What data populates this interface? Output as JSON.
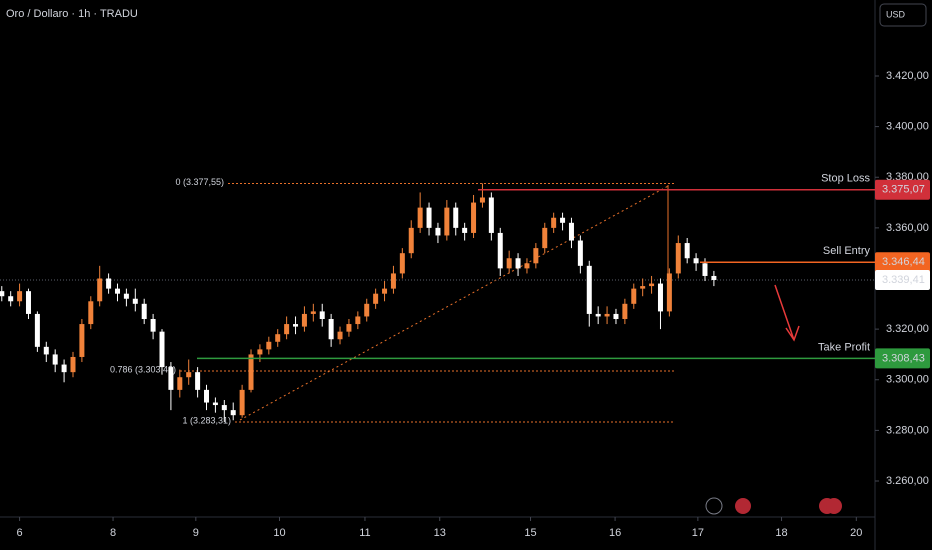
{
  "chart_data": {
    "type": "candlestick",
    "title": "Oro / Dollaro · 1h · TRADU",
    "currency": "USD",
    "x": [
      0,
      1,
      2,
      3,
      4,
      5,
      6,
      7,
      8,
      9,
      10,
      11,
      12,
      13,
      14,
      15,
      16,
      17,
      18,
      19,
      20,
      21,
      22,
      23,
      24,
      25,
      26,
      27,
      28,
      29,
      30,
      31,
      32,
      33,
      34,
      35,
      36,
      37,
      38,
      39,
      40,
      41,
      42,
      43,
      44,
      45,
      46,
      47,
      48,
      49,
      50,
      51,
      52,
      53,
      54,
      55,
      56,
      57,
      58,
      59,
      60,
      61,
      62,
      63,
      64,
      65,
      66,
      67,
      68,
      69,
      70,
      71,
      72,
      73,
      74,
      75,
      76,
      77,
      78,
      79,
      80
    ],
    "open": [
      3335,
      3333,
      3331,
      3335,
      3326,
      3313,
      3310,
      3306,
      3303,
      3309,
      3322,
      3331,
      3340,
      3336,
      3334,
      3332,
      3330,
      3324,
      3319,
      3305,
      3296,
      3301,
      3303,
      3296,
      3291,
      3290,
      3288,
      3286,
      3296,
      3310,
      3312,
      3315,
      3318,
      3322,
      3321,
      3326,
      3327,
      3324,
      3316,
      3319,
      3322,
      3325,
      3330,
      3334,
      3336,
      3342,
      3350,
      3360,
      3368,
      3360,
      3357,
      3368,
      3360,
      3358,
      3370,
      3372,
      3358,
      3344,
      3348,
      3344,
      3346,
      3352,
      3360,
      3364,
      3362,
      3355,
      3345,
      3326,
      3325,
      3326,
      3324,
      3330,
      3336,
      3337,
      3338,
      3327,
      3342,
      3354,
      3348,
      3346,
      3341
    ],
    "high": [
      3337,
      3335,
      3338,
      3336,
      3327,
      3315,
      3312,
      3308,
      3311,
      3324,
      3333,
      3345,
      3342,
      3338,
      3336,
      3336,
      3332,
      3326,
      3320,
      3307,
      3304,
      3308,
      3305,
      3298,
      3293,
      3292,
      3291,
      3298,
      3312,
      3314,
      3317,
      3320,
      3325,
      3325,
      3329,
      3330,
      3330,
      3326,
      3321,
      3324,
      3327,
      3332,
      3336,
      3339,
      3345,
      3352,
      3363,
      3374,
      3370,
      3362,
      3371,
      3370,
      3362,
      3373,
      3377.55,
      3374,
      3360,
      3351,
      3350,
      3348,
      3354,
      3362,
      3366,
      3366,
      3364,
      3357,
      3347,
      3329,
      3329,
      3328,
      3332,
      3338,
      3340,
      3341,
      3340,
      3344,
      3357,
      3356,
      3350,
      3348,
      3343
    ],
    "low": [
      3331,
      3329,
      3329,
      3324,
      3311,
      3307,
      3303,
      3299,
      3301,
      3307,
      3320,
      3329,
      3334,
      3331,
      3329,
      3327,
      3322,
      3316,
      3302,
      3288,
      3293,
      3298,
      3293,
      3288,
      3287,
      3283.31,
      3284,
      3285,
      3295,
      3307,
      3310,
      3313,
      3316,
      3318,
      3319,
      3323,
      3321,
      3313,
      3314,
      3317,
      3320,
      3323,
      3328,
      3331,
      3334,
      3340,
      3348,
      3358,
      3357,
      3354,
      3355,
      3357,
      3355,
      3356,
      3368,
      3355,
      3341,
      3342,
      3341,
      3342,
      3344,
      3350,
      3358,
      3359,
      3352,
      3342,
      3321,
      3322,
      3322,
      3322,
      3322,
      3328,
      3333,
      3334,
      3320,
      3325,
      3340,
      3346,
      3343,
      3339,
      3337
    ],
    "close": [
      3333,
      3331,
      3335,
      3326,
      3313,
      3310,
      3306,
      3303,
      3309,
      3322,
      3331,
      3340,
      3336,
      3334,
      3332,
      3330,
      3324,
      3319,
      3305,
      3296,
      3301,
      3303,
      3296,
      3291,
      3290,
      3288,
      3286,
      3296,
      3310,
      3312,
      3315,
      3318,
      3322,
      3321,
      3326,
      3327,
      3324,
      3316,
      3319,
      3322,
      3325,
      3330,
      3334,
      3336,
      3342,
      3350,
      3360,
      3368,
      3360,
      3357,
      3368,
      3360,
      3358,
      3370,
      3372,
      3358,
      3344,
      3348,
      3344,
      3346,
      3352,
      3360,
      3364,
      3362,
      3355,
      3345,
      3326,
      3325,
      3326,
      3324,
      3330,
      3336,
      3337,
      3338,
      3327,
      3342,
      3354,
      3348,
      3346,
      3341,
      3339.41
    ],
    "up_color": "#f0823a",
    "down_color": "#ffffff",
    "xlim": [
      -0.2,
      98.1
    ],
    "xticks": [
      {
        "value": 2,
        "label": "6"
      },
      {
        "value": 12.5,
        "label": "8"
      },
      {
        "value": 21.8,
        "label": "9"
      },
      {
        "value": 31.2,
        "label": "10"
      },
      {
        "value": 40.8,
        "label": "11"
      },
      {
        "value": 49.2,
        "label": "13"
      },
      {
        "value": 59.4,
        "label": "15"
      },
      {
        "value": 68.9,
        "label": "16"
      },
      {
        "value": 78.2,
        "label": "17"
      },
      {
        "value": 87.6,
        "label": "18"
      },
      {
        "value": 96,
        "label": "20"
      }
    ],
    "ylim": [
      3245.78,
      3450.02
    ],
    "yticks": [
      {
        "value": 3260,
        "label": "3.260,00"
      },
      {
        "value": 3280,
        "label": "3.280,00"
      },
      {
        "value": 3300,
        "label": "3.300,00"
      },
      {
        "value": 3320,
        "label": "3.320,00"
      },
      {
        "value": 3340,
        "label": "3.340,00"
      },
      {
        "value": 3360,
        "label": "3.360,00"
      },
      {
        "value": 3380,
        "label": "3.380,00"
      },
      {
        "value": 3400,
        "label": "3.400,00"
      },
      {
        "value": 3420,
        "label": "3.420,00"
      }
    ],
    "grid": false,
    "levels": [
      {
        "name": "Stop Loss",
        "value": 3375.07,
        "value_label": "3.375,07",
        "color": "#d1303a"
      },
      {
        "name": "Sell Entry",
        "value": 3346.44,
        "value_label": "3.346,44",
        "color": "#f26522"
      },
      {
        "name": "Take Profit",
        "value": 3308.43,
        "value_label": "3.308,43",
        "color": "#2e9a3e"
      }
    ],
    "last_price": {
      "value": 3339.41,
      "label": "3.339,41"
    },
    "fib_color": "#e8702a",
    "fib": [
      {
        "label": "0 (3.377,55)",
        "value": 3377.55
      },
      {
        "label": "0.786 (3.303,48)",
        "value": 3303.48
      },
      {
        "label": "1 (3.283,31)",
        "value": 3283.31
      }
    ]
  }
}
